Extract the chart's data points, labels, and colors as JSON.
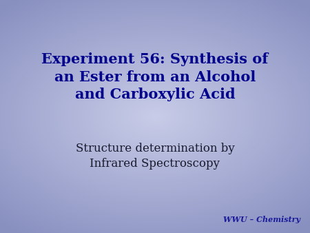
{
  "title_line1": "Experiment 56: Synthesis of",
  "title_line2": "an Ester from an Alcohol",
  "title_line3": "and Carboxylic Acid",
  "subtitle_line1": "Structure determination by",
  "subtitle_line2": "Infrared Spectroscopy",
  "watermark": "WWU – Chemistry",
  "title_color": "#00008B",
  "subtitle_color": "#1a1a2e",
  "watermark_color": "#1a1a9a",
  "bg_color_center": "#c8cce8",
  "bg_color_edge": "#8890c0",
  "title_fontsize": 15,
  "subtitle_fontsize": 12,
  "watermark_fontsize": 8,
  "fig_width": 4.5,
  "fig_height": 3.38,
  "dpi": 100
}
